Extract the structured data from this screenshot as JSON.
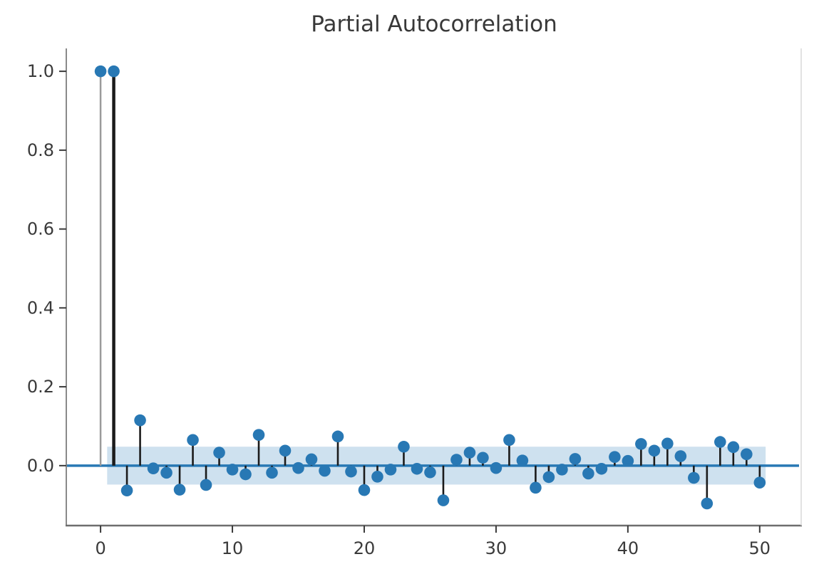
{
  "title": "Partial Autocorrelation",
  "chart_data": {
    "type": "stem",
    "title": "Partial Autocorrelation",
    "xlabel": "",
    "ylabel": "",
    "x": [
      0,
      1,
      2,
      3,
      4,
      5,
      6,
      7,
      8,
      9,
      10,
      11,
      12,
      13,
      14,
      15,
      16,
      17,
      18,
      19,
      20,
      21,
      22,
      23,
      24,
      25,
      26,
      27,
      28,
      29,
      30,
      31,
      32,
      33,
      34,
      35,
      36,
      37,
      38,
      39,
      40,
      41,
      42,
      43,
      44,
      45,
      46,
      47,
      48,
      49,
      50
    ],
    "values": [
      1.0,
      1.0,
      -0.063,
      0.115,
      -0.007,
      -0.018,
      -0.061,
      0.065,
      -0.049,
      0.033,
      -0.01,
      -0.022,
      0.078,
      -0.018,
      0.038,
      -0.006,
      0.016,
      -0.013,
      0.074,
      -0.015,
      -0.062,
      -0.028,
      -0.01,
      0.048,
      -0.008,
      -0.017,
      -0.088,
      0.015,
      0.033,
      0.02,
      -0.006,
      0.065,
      0.013,
      -0.056,
      -0.029,
      -0.01,
      0.017,
      -0.02,
      -0.008,
      0.022,
      0.012,
      0.055,
      0.038,
      0.056,
      0.024,
      -0.031,
      -0.096,
      0.06,
      0.047,
      0.029,
      -0.043
    ],
    "confidence_interval": 0.048,
    "band_x_range": [
      0.5,
      50.45
    ],
    "zero_line_value": 0.0,
    "xlim": [
      -2.6,
      53.2
    ],
    "ylim": [
      -0.152,
      1.058
    ],
    "xtick_values": [
      0,
      10,
      20,
      30,
      40,
      50
    ],
    "xtick_labels": [
      "0",
      "10",
      "20",
      "30",
      "40",
      "50"
    ],
    "ytick_values": [
      0.0,
      0.2,
      0.4,
      0.6,
      0.8,
      1.0
    ],
    "ytick_labels": [
      "0.0",
      "0.2",
      "0.4",
      "0.6",
      "0.8",
      "1.0"
    ],
    "grid": "off",
    "legend": "none",
    "colors": {
      "marker": "#2878b4",
      "stem": "#1b1b1b",
      "stem_lag0": "#9b9b9b",
      "zero_line": "#2878b4",
      "band": "#1f77b4",
      "band_opacity": "0.22",
      "spine_left": "#8a8a8a",
      "spine_bottom": "#6e6e6e",
      "spine_right": "#d9d9d9",
      "tick": "#3a3a3a",
      "title_color": "#383838",
      "background": "#ffffff"
    }
  }
}
